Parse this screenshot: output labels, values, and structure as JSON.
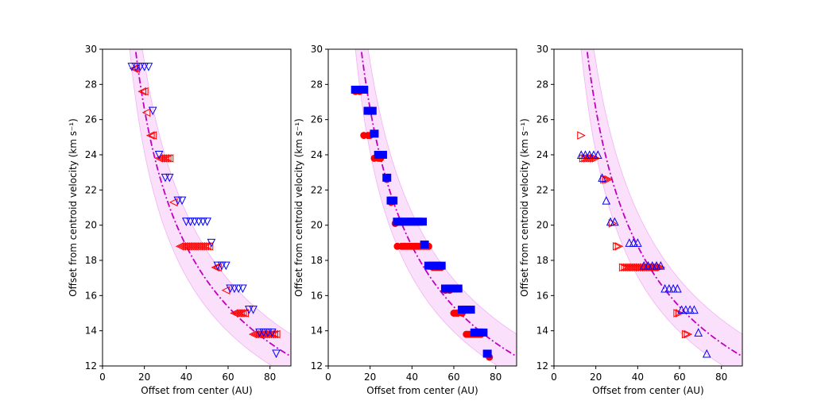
{
  "colors": {
    "curve": "#bf00bf",
    "band": "#ee99ee",
    "red": "#ff0000",
    "blue": "#0000ff"
  },
  "chart_data": [
    {
      "type": "scatter",
      "panel": "left",
      "xlabel": "Offset from center (AU)",
      "ylabel": "Offset from centroid velocity (km s⁻¹)",
      "xlim": [
        0,
        90
      ],
      "ylim": [
        12,
        30
      ],
      "xticks": [
        0,
        20,
        40,
        60,
        80
      ],
      "yticks": [
        12,
        14,
        16,
        18,
        20,
        22,
        24,
        26,
        28,
        30
      ],
      "series": [
        {
          "name": "red-left-triangles",
          "color": "red",
          "marker": "tri-left",
          "filled": false,
          "points": [
            [
              15,
              28.9
            ],
            [
              16,
              28.9
            ],
            [
              19,
              27.6
            ],
            [
              20,
              27.6
            ],
            [
              21,
              26.4
            ],
            [
              23,
              25.1
            ],
            [
              24,
              25.1
            ],
            [
              27,
              23.8
            ],
            [
              28,
              23.8
            ],
            [
              29,
              23.8
            ],
            [
              30,
              23.8
            ],
            [
              31,
              23.8
            ],
            [
              32,
              23.8
            ],
            [
              34,
              21.3
            ],
            [
              37,
              18.8
            ],
            [
              38,
              18.8
            ],
            [
              39,
              18.8
            ],
            [
              40,
              18.8
            ],
            [
              41,
              18.8
            ],
            [
              42,
              18.8
            ],
            [
              43,
              18.8
            ],
            [
              44,
              18.8
            ],
            [
              45,
              18.8
            ],
            [
              46,
              18.8
            ],
            [
              47,
              18.8
            ],
            [
              48,
              18.8
            ],
            [
              49,
              18.8
            ],
            [
              50,
              18.8
            ],
            [
              51,
              18.8
            ],
            [
              54,
              17.6
            ],
            [
              55,
              17.6
            ],
            [
              59,
              16.3
            ],
            [
              63,
              15.0
            ],
            [
              64,
              15.0
            ],
            [
              65,
              15.0
            ],
            [
              66,
              15.0
            ],
            [
              67,
              15.0
            ],
            [
              68,
              15.0
            ],
            [
              72,
              13.8
            ],
            [
              73,
              13.8
            ],
            [
              74,
              13.8
            ],
            [
              75,
              13.8
            ],
            [
              76,
              13.8
            ],
            [
              77,
              13.8
            ],
            [
              78,
              13.8
            ],
            [
              79,
              13.8
            ],
            [
              80,
              13.8
            ],
            [
              81,
              13.8
            ],
            [
              82,
              13.8
            ],
            [
              83,
              13.8
            ]
          ]
        },
        {
          "name": "blue-down-triangles",
          "color": "blue",
          "marker": "tri-down",
          "filled": false,
          "points": [
            [
              14,
              29.0
            ],
            [
              16,
              29.0
            ],
            [
              18,
              29.0
            ],
            [
              20,
              29.0
            ],
            [
              22,
              29.0
            ],
            [
              24,
              26.5
            ],
            [
              27,
              24.0
            ],
            [
              30,
              22.7
            ],
            [
              32,
              22.7
            ],
            [
              36,
              21.4
            ],
            [
              38,
              21.4
            ],
            [
              40,
              20.2
            ],
            [
              42,
              20.2
            ],
            [
              44,
              20.2
            ],
            [
              46,
              20.2
            ],
            [
              48,
              20.2
            ],
            [
              50,
              20.2
            ],
            [
              52,
              19.0
            ],
            [
              55,
              17.7
            ],
            [
              57,
              17.7
            ],
            [
              59,
              17.7
            ],
            [
              61,
              16.4
            ],
            [
              63,
              16.4
            ],
            [
              65,
              16.4
            ],
            [
              67,
              16.4
            ],
            [
              70,
              15.2
            ],
            [
              72,
              15.2
            ],
            [
              75,
              13.9
            ],
            [
              77,
              13.9
            ],
            [
              79,
              13.9
            ],
            [
              81,
              13.9
            ],
            [
              83,
              12.7
            ]
          ]
        }
      ]
    },
    {
      "type": "scatter",
      "panel": "middle",
      "xlabel": "Offset from center (AU)",
      "ylabel": "Offset from centroid velocity (km s⁻¹)",
      "xlim": [
        0,
        90
      ],
      "ylim": [
        12,
        30
      ],
      "xticks": [
        0,
        20,
        40,
        60,
        80
      ],
      "yticks": [
        12,
        14,
        16,
        18,
        20,
        22,
        24,
        26,
        28,
        30
      ],
      "series": [
        {
          "name": "red-circles",
          "color": "red",
          "marker": "circle",
          "filled": true,
          "points": [
            [
              13,
              27.6
            ],
            [
              15,
              27.6
            ],
            [
              17,
              25.1
            ],
            [
              19,
              25.1
            ],
            [
              20,
              25.1
            ],
            [
              22,
              23.8
            ],
            [
              24,
              23.8
            ],
            [
              25,
              23.8
            ],
            [
              28,
              22.6
            ],
            [
              30,
              21.3
            ],
            [
              32,
              20.1
            ],
            [
              33,
              18.8
            ],
            [
              35,
              18.8
            ],
            [
              36,
              18.8
            ],
            [
              37,
              18.8
            ],
            [
              38,
              18.8
            ],
            [
              39,
              18.8
            ],
            [
              40,
              18.8
            ],
            [
              41,
              18.8
            ],
            [
              42,
              18.8
            ],
            [
              43,
              18.8
            ],
            [
              44,
              18.8
            ],
            [
              45,
              18.8
            ],
            [
              46,
              18.8
            ],
            [
              47,
              18.8
            ],
            [
              48,
              18.8
            ],
            [
              50,
              17.6
            ],
            [
              51,
              17.6
            ],
            [
              52,
              17.6
            ],
            [
              53,
              17.6
            ],
            [
              54,
              17.6
            ],
            [
              56,
              16.3
            ],
            [
              58,
              16.3
            ],
            [
              60,
              15.0
            ],
            [
              61,
              15.0
            ],
            [
              62,
              15.0
            ],
            [
              64,
              15.0
            ],
            [
              66,
              13.8
            ],
            [
              67,
              13.8
            ],
            [
              68,
              13.8
            ],
            [
              69,
              13.8
            ],
            [
              70,
              13.8
            ],
            [
              71,
              13.8
            ],
            [
              72,
              13.8
            ],
            [
              73,
              13.8
            ],
            [
              77,
              12.5
            ]
          ]
        },
        {
          "name": "blue-squares",
          "color": "blue",
          "marker": "square",
          "filled": true,
          "points": [
            [
              13,
              27.7
            ],
            [
              15,
              27.7
            ],
            [
              17,
              27.7
            ],
            [
              19,
              26.5
            ],
            [
              21,
              26.5
            ],
            [
              22,
              25.2
            ],
            [
              24,
              24.0
            ],
            [
              26,
              24.0
            ],
            [
              28,
              22.7
            ],
            [
              30,
              21.4
            ],
            [
              31,
              21.4
            ],
            [
              33,
              20.2
            ],
            [
              35,
              20.2
            ],
            [
              37,
              20.2
            ],
            [
              39,
              20.2
            ],
            [
              41,
              20.2
            ],
            [
              43,
              20.2
            ],
            [
              45,
              20.2
            ],
            [
              46,
              18.9
            ],
            [
              48,
              17.7
            ],
            [
              50,
              17.7
            ],
            [
              52,
              17.7
            ],
            [
              54,
              17.7
            ],
            [
              56,
              16.4
            ],
            [
              58,
              16.4
            ],
            [
              60,
              16.4
            ],
            [
              62,
              16.4
            ],
            [
              64,
              15.2
            ],
            [
              66,
              15.2
            ],
            [
              68,
              15.2
            ],
            [
              70,
              13.9
            ],
            [
              72,
              13.9
            ],
            [
              74,
              13.9
            ],
            [
              76,
              12.7
            ]
          ]
        }
      ]
    },
    {
      "type": "scatter",
      "panel": "right",
      "xlabel": "Offset from center (AU)",
      "ylabel": "Offset from centroid velocity (km s⁻¹)",
      "xlim": [
        0,
        90
      ],
      "ylim": [
        12,
        30
      ],
      "xticks": [
        0,
        20,
        40,
        60,
        80
      ],
      "yticks": [
        12,
        14,
        16,
        18,
        20,
        22,
        24,
        26,
        28,
        30
      ],
      "series": [
        {
          "name": "red-right-triangles",
          "color": "red",
          "marker": "tri-right",
          "filled": false,
          "points": [
            [
              13,
              25.1
            ],
            [
              14,
              23.8
            ],
            [
              15,
              23.8
            ],
            [
              16,
              23.8
            ],
            [
              17,
              23.8
            ],
            [
              18,
              23.8
            ],
            [
              19,
              23.8
            ],
            [
              20,
              23.8
            ],
            [
              24,
              22.6
            ],
            [
              25,
              22.6
            ],
            [
              26,
              22.6
            ],
            [
              28,
              20.1
            ],
            [
              30,
              18.8
            ],
            [
              31,
              18.8
            ],
            [
              33,
              17.6
            ],
            [
              34,
              17.6
            ],
            [
              35,
              17.6
            ],
            [
              36,
              17.6
            ],
            [
              37,
              17.6
            ],
            [
              38,
              17.6
            ],
            [
              39,
              17.6
            ],
            [
              40,
              17.6
            ],
            [
              41,
              17.6
            ],
            [
              42,
              17.6
            ],
            [
              43,
              17.6
            ],
            [
              44,
              17.6
            ],
            [
              45,
              17.6
            ],
            [
              46,
              17.6
            ],
            [
              47,
              17.6
            ],
            [
              48,
              17.6
            ],
            [
              49,
              17.6
            ],
            [
              50,
              17.6
            ],
            [
              51,
              17.6
            ],
            [
              59,
              15.0
            ],
            [
              60,
              15.0
            ],
            [
              63,
              13.8
            ],
            [
              64,
              13.8
            ]
          ]
        },
        {
          "name": "blue-up-triangles",
          "color": "blue",
          "marker": "tri-up",
          "filled": false,
          "points": [
            [
              13,
              24.0
            ],
            [
              15,
              24.0
            ],
            [
              17,
              24.0
            ],
            [
              19,
              24.0
            ],
            [
              21,
              24.0
            ],
            [
              23,
              22.7
            ],
            [
              25,
              21.4
            ],
            [
              27,
              20.2
            ],
            [
              29,
              20.2
            ],
            [
              36,
              19.0
            ],
            [
              38,
              19.0
            ],
            [
              40,
              19.0
            ],
            [
              43,
              17.7
            ],
            [
              45,
              17.7
            ],
            [
              47,
              17.7
            ],
            [
              49,
              17.7
            ],
            [
              51,
              17.7
            ],
            [
              53,
              16.4
            ],
            [
              55,
              16.4
            ],
            [
              57,
              16.4
            ],
            [
              59,
              16.4
            ],
            [
              61,
              15.2
            ],
            [
              63,
              15.2
            ],
            [
              65,
              15.2
            ],
            [
              67,
              15.2
            ],
            [
              69,
              13.9
            ],
            [
              73,
              12.7
            ]
          ]
        }
      ]
    }
  ]
}
